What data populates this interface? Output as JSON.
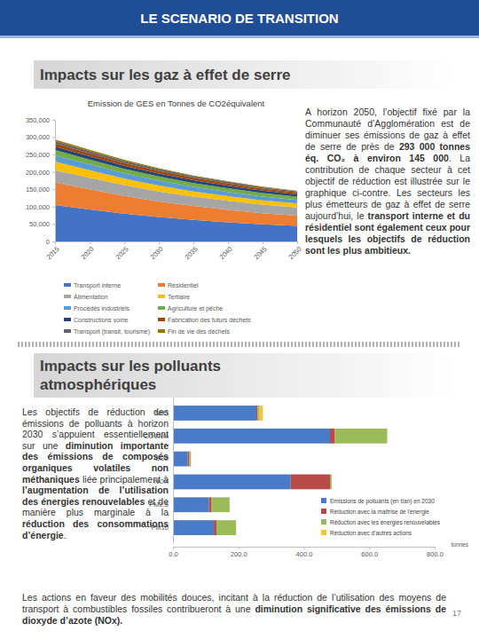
{
  "page": {
    "banner": "LE SCENARIO DE TRANSITION",
    "sections": [
      {
        "title": "Impacts sur les gaz à effet de serre",
        "paragraph": [
          {
            "text": "A horizon 2050, l’objectif fixé par la Communauté d’Agglomération est de diminuer ses émissions de gaz à effet de serre de près de ",
            "bold": false
          },
          {
            "text": "293 000 tonnes éq. CO₂ à environ 145 000",
            "bold": true
          },
          {
            "text": ". La contribution de chaque secteur à cet objectif de réduction est illustrée sur le graphique ci-contre. Les secteurs les plus émetteurs de gaz à effet de serre aujourd’hui, le ",
            "bold": false
          },
          {
            "text": "transport interne et du résidentiel sont également ceux pour lesquels les objectifs de réduction sont les plus ambitieux.",
            "bold": true
          }
        ]
      },
      {
        "title": "Impacts sur les polluants atmosphériques",
        "paragraph": [
          {
            "text": "Les objectifs de réduction des émissions de polluants à horizon 2030 s’appuient essentiellement sur une ",
            "bold": false
          },
          {
            "text": "diminution importante des émissions de composés organiques volatiles non méthaniques",
            "bold": true
          },
          {
            "text": " liée principalement à ",
            "bold": false
          },
          {
            "text": "l’augmentation de l’utilisation des énergies renouvelables",
            "bold": true
          },
          {
            "text": " et de manière plus marginale à la ",
            "bold": false
          },
          {
            "text": "réduction des consommations d’énergie",
            "bold": true
          },
          {
            "text": ".",
            "bold": false
          }
        ]
      }
    ],
    "footer_paragraph": [
      {
        "text": "Les actions en faveur des mobilités douces, incitant à la réduction de l’utilisation des moyens de transport à combustibles fossiles contribueront à une ",
        "bold": false
      },
      {
        "text": "diminution significative des émissions de dioxyde d’azote (NOx).",
        "bold": true
      }
    ],
    "page_number": 17
  },
  "chart_data": [
    {
      "type": "area",
      "stacked": true,
      "grid": false,
      "legend": "bottom",
      "title": "Emission de GES en Tonnes de CO2équivalent",
      "categories": [
        "2015",
        "2020",
        "2025",
        "2030",
        "2035",
        "2040",
        "2045",
        "2050"
      ],
      "ylim": [
        0,
        350000
      ],
      "yticks": [
        0,
        {
          "value": 50000,
          "label": "50,000"
        },
        {
          "value": 100000,
          "label": "100,000"
        },
        {
          "value": 150000,
          "label": "150,000"
        },
        {
          "value": 200000,
          "label": "200,000"
        },
        {
          "value": 250000,
          "label": "250,000"
        },
        {
          "value": 300000,
          "label": "300,000"
        },
        {
          "value": 350000,
          "label": "350,000"
        }
      ],
      "series": [
        {
          "name": "Transport interne",
          "color": "#4472C4",
          "values": [
            105000,
            92000,
            80000,
            70000,
            62000,
            55000,
            49000,
            45000
          ]
        },
        {
          "name": "Résidentiel",
          "color": "#ED7D31",
          "values": [
            65000,
            58000,
            51000,
            45000,
            40000,
            36000,
            32000,
            29000
          ]
        },
        {
          "name": "Alimentation",
          "color": "#A5A5A5",
          "values": [
            35000,
            33000,
            31000,
            29000,
            27000,
            26000,
            25000,
            24000
          ]
        },
        {
          "name": "Tertiaire",
          "color": "#FFC000",
          "values": [
            25000,
            22000,
            19000,
            17000,
            15000,
            13500,
            12000,
            11000
          ]
        },
        {
          "name": "Procédés industriels",
          "color": "#5B9BD5",
          "values": [
            18000,
            16500,
            15000,
            14000,
            13000,
            12000,
            11000,
            10500
          ]
        },
        {
          "name": "Agriculture et pêche",
          "color": "#70AD47",
          "values": [
            15000,
            14000,
            13000,
            12000,
            11000,
            10500,
            10000,
            9500
          ]
        },
        {
          "name": "Constructions voirie",
          "color": "#264478",
          "values": [
            10000,
            9500,
            9000,
            8500,
            8000,
            7500,
            7000,
            6500
          ]
        },
        {
          "name": "Fabrication des futurs déchets",
          "color": "#9E480E",
          "values": [
            9000,
            8500,
            8000,
            7500,
            7000,
            6500,
            6000,
            5500
          ]
        },
        {
          "name": "Transport (transit, tourisme)",
          "color": "#636363",
          "values": [
            7000,
            6500,
            6000,
            5500,
            5000,
            4500,
            4000,
            3500
          ]
        },
        {
          "name": "Fin de vie des déchets",
          "color": "#997300",
          "values": [
            4000,
            3500,
            3000,
            2500,
            2000,
            1800,
            1500,
            1000
          ]
        }
      ]
    },
    {
      "type": "bar",
      "orientation": "horizontal",
      "stacked": true,
      "grid": false,
      "legend": "right",
      "xlabel": "tonnes",
      "categories": [
        "NH3",
        "COVNM",
        "SO2",
        "NOX",
        "PM2,5",
        "PM10"
      ],
      "xlim": [
        0,
        800
      ],
      "xticks": [
        {
          "value": 0,
          "label": "0.0"
        },
        {
          "value": 200,
          "label": "200.0"
        },
        {
          "value": 400,
          "label": "400.0"
        },
        {
          "value": 600,
          "label": "600.0"
        },
        {
          "value": 800,
          "label": "800.0"
        }
      ],
      "series": [
        {
          "name": "Emissions de polluants (en t/an) en 2030",
          "color": "#4A7BC8",
          "values": [
            255,
            480,
            45,
            360,
            110,
            125
          ]
        },
        {
          "name": "Réduction avec la maîtrise de l'énergie",
          "color": "#B84A48",
          "values": [
            3,
            15,
            5,
            120,
            8,
            8
          ]
        },
        {
          "name": "Réduction avec les énergies renouvelables",
          "color": "#9BBB59",
          "values": [
            5,
            160,
            5,
            5,
            55,
            60
          ]
        },
        {
          "name": "Réduction avec d'autres actions",
          "color": "#F5C242",
          "values": [
            12,
            0,
            0,
            0,
            0,
            0
          ]
        }
      ]
    }
  ]
}
